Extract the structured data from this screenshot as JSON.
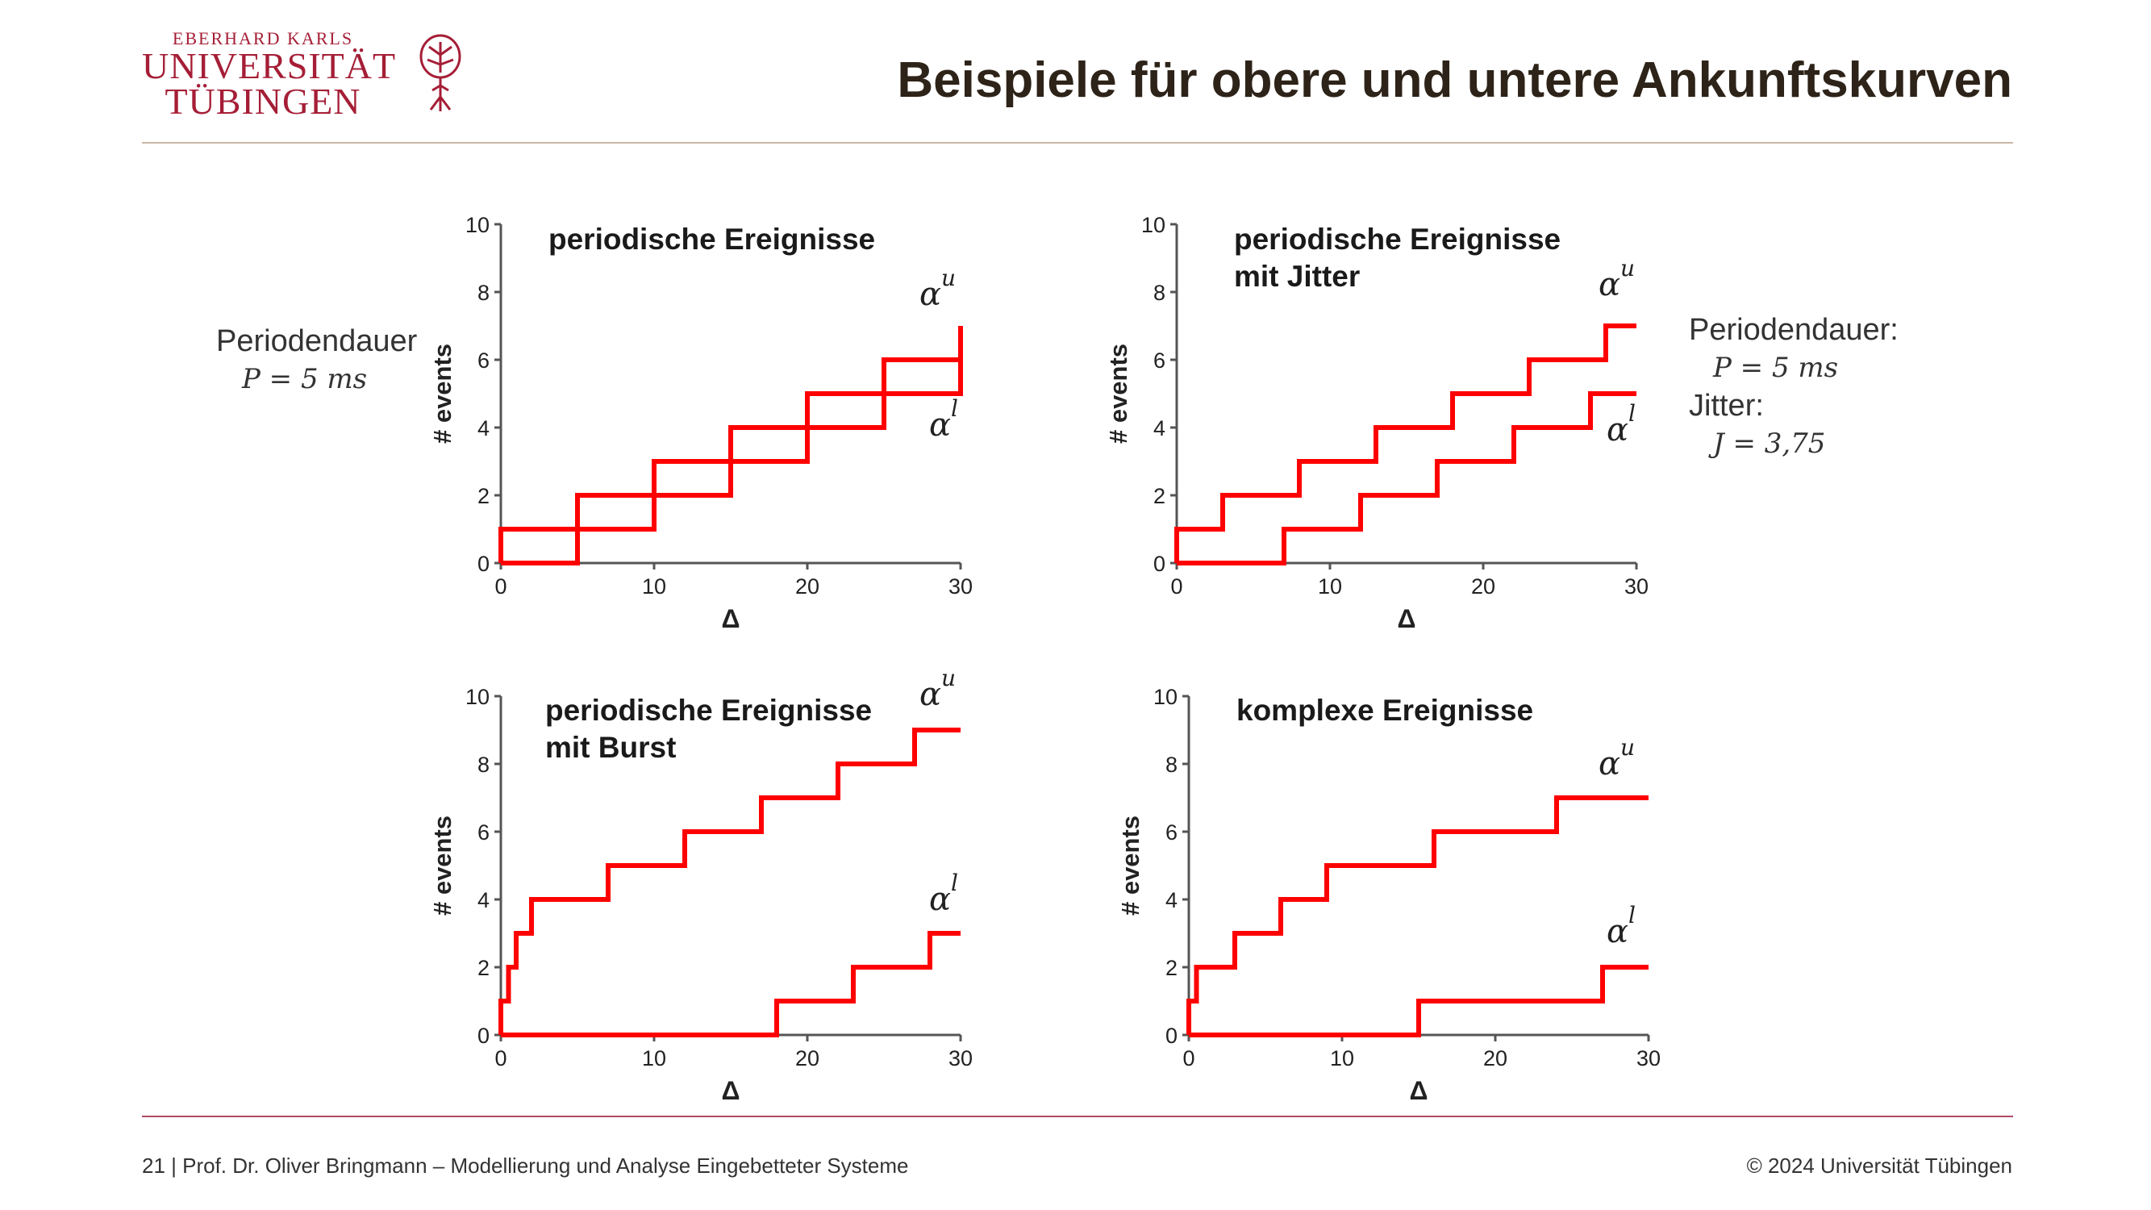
{
  "slide": {
    "title": "Beispiele für obere und untere Ankunftskurven",
    "logo": {
      "line1": "EBERHARD KARLS",
      "line2": "UNIVERSITÄT",
      "line3": "TÜBINGEN"
    },
    "footer_left": "21 | Prof. Dr. Oliver Bringmann – Modellierung und Analyse Eingebetteter Systeme",
    "footer_right": "© 2024 Universität Tübingen",
    "left_note": {
      "label": "Periodendauer",
      "formula": "P = 5 ms"
    },
    "right_note": {
      "label1": "Periodendauer:",
      "formula1": "P = 5 ms",
      "label2": "Jitter:",
      "formula2": "J = 3,75"
    },
    "accent_color": "#ff0000",
    "brand_color": "#a51e36"
  },
  "chart_data": [
    {
      "type": "line",
      "title_lines": [
        "periodische Ereignisse"
      ],
      "xlabel": "Δ",
      "ylabel": "# events",
      "xlim": [
        0,
        30
      ],
      "ylim": [
        0,
        10
      ],
      "xticks": [
        "0",
        "10",
        "20",
        "30"
      ],
      "yticks": [
        "0",
        "2",
        "4",
        "6",
        "8",
        "10"
      ],
      "grid": false,
      "series": [
        {
          "name": "αu",
          "label_sup": "u",
          "x": [
            0,
            0,
            5,
            5,
            10,
            10,
            15,
            15,
            20,
            20,
            25,
            25,
            30,
            30
          ],
          "y": [
            0,
            1,
            1,
            2,
            2,
            3,
            3,
            4,
            4,
            5,
            5,
            6,
            6,
            7
          ]
        },
        {
          "name": "αl",
          "label_sup": "l",
          "x": [
            0,
            5,
            5,
            10,
            10,
            15,
            15,
            20,
            20,
            25,
            25,
            30,
            30
          ],
          "y": [
            0,
            0,
            1,
            1,
            2,
            2,
            3,
            3,
            4,
            4,
            5,
            5,
            6
          ]
        }
      ]
    },
    {
      "type": "line",
      "title_lines": [
        "periodische Ereignisse",
        "mit Jitter"
      ],
      "xlabel": "Δ",
      "ylabel": "# events",
      "xlim": [
        0,
        30
      ],
      "ylim": [
        0,
        10
      ],
      "xticks": [
        "0",
        "10",
        "20",
        "30"
      ],
      "yticks": [
        "0",
        "2",
        "4",
        "6",
        "8",
        "10"
      ],
      "grid": false,
      "series": [
        {
          "name": "αu",
          "label_sup": "u",
          "x": [
            0,
            0,
            3,
            3,
            8,
            8,
            13,
            13,
            18,
            18,
            23,
            23,
            28,
            28,
            30
          ],
          "y": [
            0,
            1,
            1,
            2,
            2,
            3,
            3,
            4,
            4,
            5,
            5,
            6,
            6,
            7,
            7
          ]
        },
        {
          "name": "αl",
          "label_sup": "l",
          "x": [
            0,
            7,
            7,
            12,
            12,
            17,
            17,
            22,
            22,
            27,
            27,
            30
          ],
          "y": [
            0,
            0,
            1,
            1,
            2,
            2,
            3,
            3,
            4,
            4,
            5,
            5
          ]
        }
      ]
    },
    {
      "type": "line",
      "title_lines": [
        "periodische Ereignisse",
        "mit Burst"
      ],
      "xlabel": "Δ",
      "ylabel": "# events",
      "xlim": [
        0,
        30
      ],
      "ylim": [
        0,
        10
      ],
      "xticks": [
        "0",
        "10",
        "20",
        "30"
      ],
      "yticks": [
        "0",
        "2",
        "4",
        "6",
        "8",
        "10"
      ],
      "grid": false,
      "series": [
        {
          "name": "αu",
          "label_sup": "u",
          "x": [
            0,
            0,
            0.5,
            0.5,
            1,
            1,
            2,
            2,
            7,
            7,
            12,
            12,
            17,
            17,
            22,
            22,
            27,
            27,
            30
          ],
          "y": [
            0,
            1,
            1,
            2,
            2,
            3,
            3,
            4,
            4,
            5,
            5,
            6,
            6,
            7,
            7,
            8,
            8,
            9,
            9
          ]
        },
        {
          "name": "αl",
          "label_sup": "l",
          "x": [
            0,
            18,
            18,
            23,
            23,
            28,
            28,
            30
          ],
          "y": [
            0,
            0,
            1,
            1,
            2,
            2,
            3,
            3
          ]
        }
      ]
    },
    {
      "type": "line",
      "title_lines": [
        "komplexe Ereignisse"
      ],
      "xlabel": "Δ",
      "ylabel": "# events",
      "xlim": [
        0,
        30
      ],
      "ylim": [
        0,
        10
      ],
      "xticks": [
        "0",
        "10",
        "20",
        "30"
      ],
      "yticks": [
        "0",
        "2",
        "4",
        "6",
        "8",
        "10"
      ],
      "grid": false,
      "series": [
        {
          "name": "αu",
          "label_sup": "u",
          "x": [
            0,
            0,
            0.5,
            0.5,
            3,
            3,
            6,
            6,
            9,
            9,
            16,
            16,
            24,
            24,
            30
          ],
          "y": [
            0,
            1,
            1,
            2,
            2,
            3,
            3,
            4,
            4,
            5,
            5,
            6,
            6,
            7,
            7
          ]
        },
        {
          "name": "αl",
          "label_sup": "l",
          "x": [
            0,
            15,
            15,
            27,
            27,
            30
          ],
          "y": [
            0,
            0,
            1,
            1,
            2,
            2
          ]
        }
      ]
    }
  ]
}
